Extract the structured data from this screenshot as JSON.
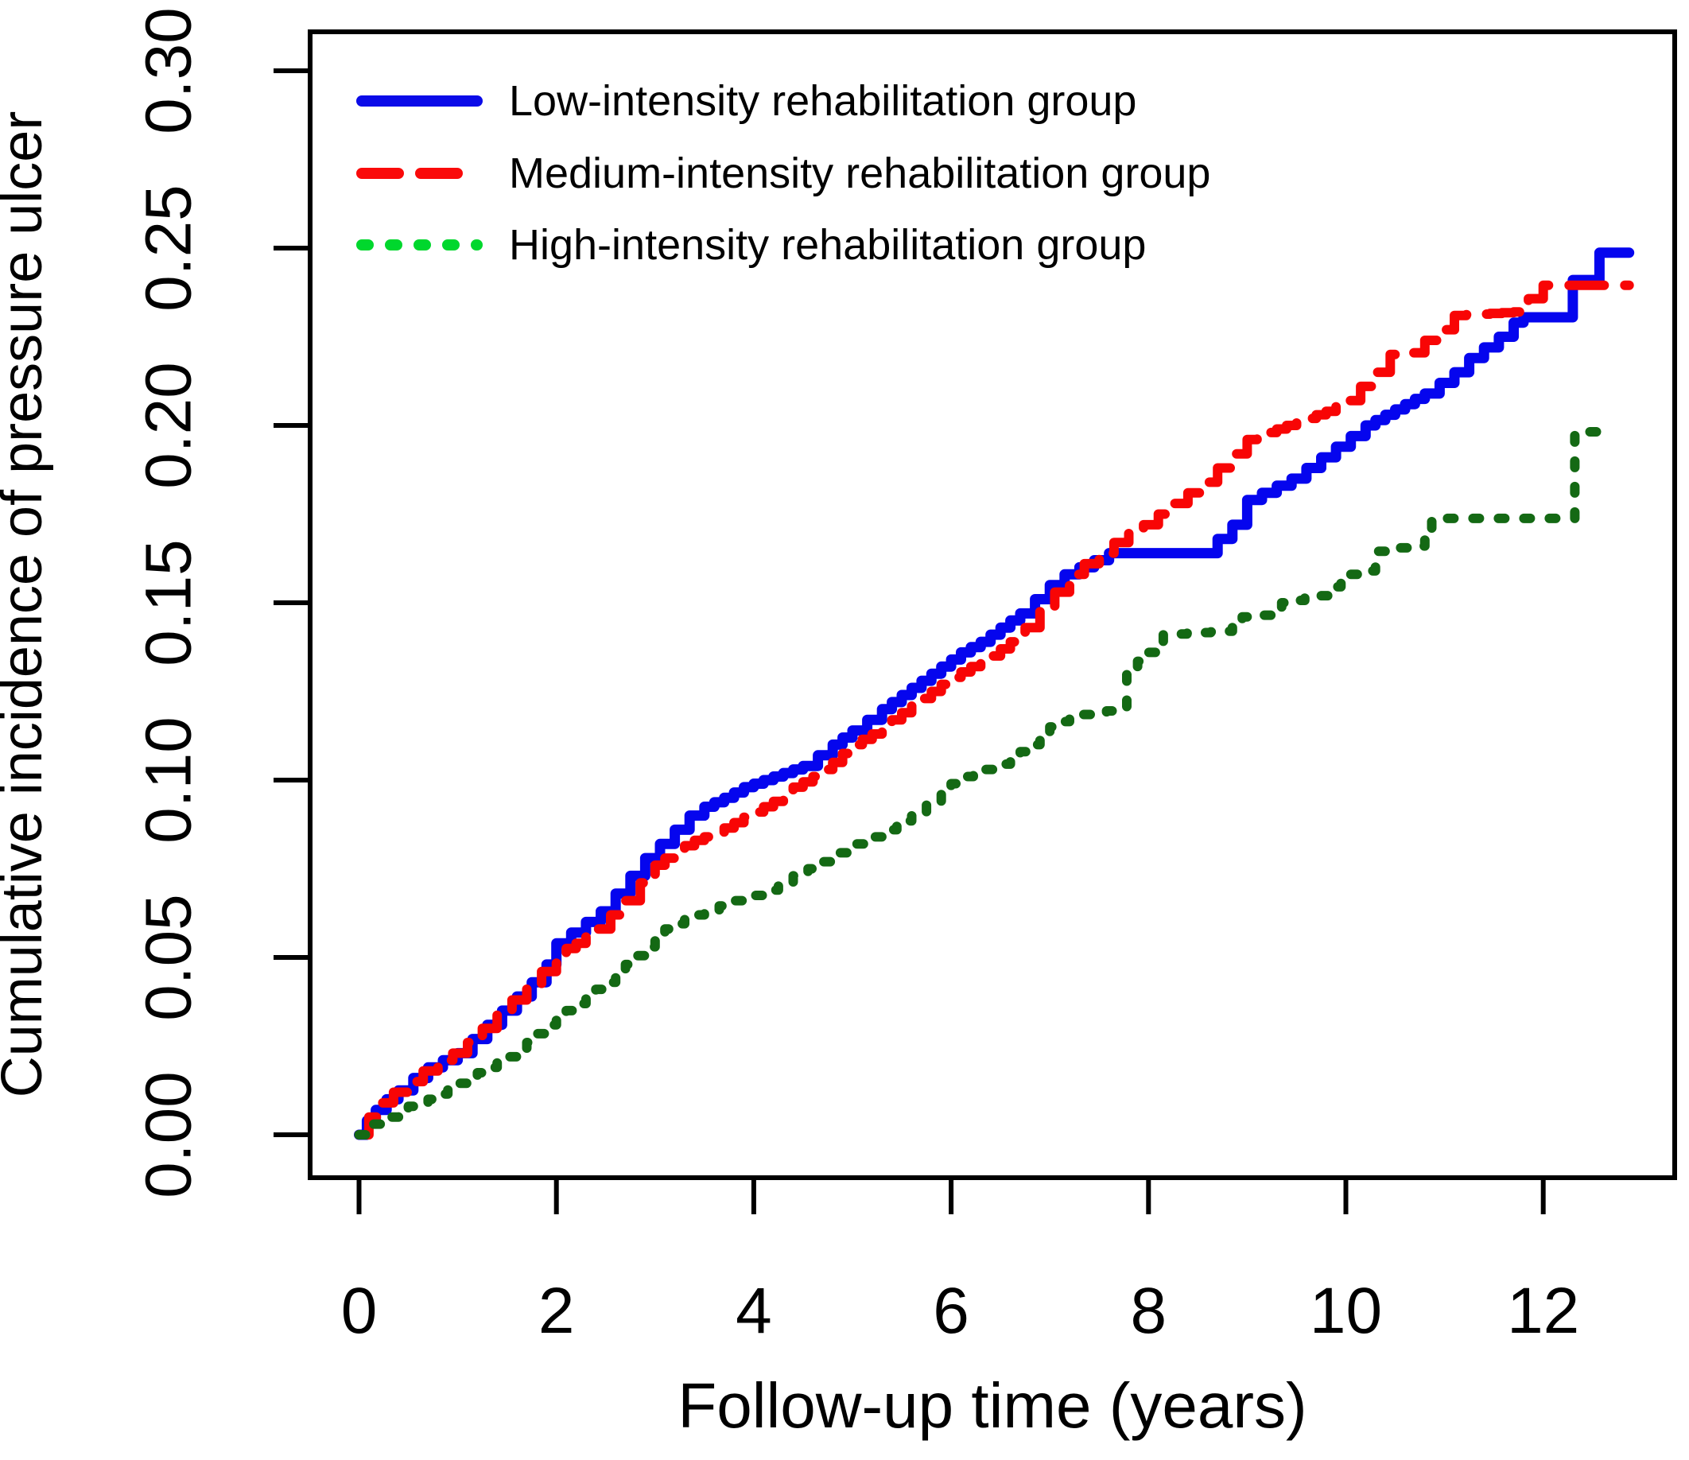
{
  "chart_data": {
    "type": "line",
    "subtype": "cumulative-incidence-step-curves",
    "title": "",
    "xlabel": "Follow-up time (years)",
    "ylabel": "Cumulative incidence of pressure ulcer",
    "xlim": [
      0,
      13.3
    ],
    "ylim": [
      0,
      0.3
    ],
    "x_ticks": [
      0,
      2,
      4,
      6,
      8,
      10,
      12
    ],
    "y_ticks": [
      "0.00",
      "0.05",
      "0.10",
      "0.15",
      "0.20",
      "0.25",
      "0.30"
    ],
    "grid": false,
    "legend_position": "top-left",
    "series": [
      {
        "name": "Low-intensity rehabilitation group",
        "color": "#0505EE",
        "key_color": "#0B0BE8",
        "line_style": "solid",
        "final_value": 0.249,
        "points": [
          [
            0,
            0
          ],
          [
            0.08,
            0.004
          ],
          [
            0.17,
            0.007
          ],
          [
            0.28,
            0.01
          ],
          [
            0.4,
            0.0125
          ],
          [
            0.55,
            0.016
          ],
          [
            0.7,
            0.019
          ],
          [
            0.85,
            0.021
          ],
          [
            1.0,
            0.023
          ],
          [
            1.15,
            0.027
          ],
          [
            1.3,
            0.031
          ],
          [
            1.45,
            0.035
          ],
          [
            1.6,
            0.039
          ],
          [
            1.75,
            0.043
          ],
          [
            1.9,
            0.048
          ],
          [
            2.0,
            0.054
          ],
          [
            2.15,
            0.057
          ],
          [
            2.3,
            0.06
          ],
          [
            2.45,
            0.063
          ],
          [
            2.6,
            0.068
          ],
          [
            2.75,
            0.073
          ],
          [
            2.9,
            0.078
          ],
          [
            3.05,
            0.082
          ],
          [
            3.2,
            0.086
          ],
          [
            3.35,
            0.09
          ],
          [
            3.5,
            0.0925
          ],
          [
            3.7,
            0.095
          ],
          [
            3.9,
            0.098
          ],
          [
            4.1,
            0.1
          ],
          [
            4.3,
            0.102
          ],
          [
            4.5,
            0.104
          ],
          [
            4.65,
            0.107
          ],
          [
            4.8,
            0.11
          ],
          [
            5.0,
            0.114
          ],
          [
            5.15,
            0.117
          ],
          [
            5.3,
            0.12
          ],
          [
            5.5,
            0.124
          ],
          [
            5.7,
            0.128
          ],
          [
            5.9,
            0.132
          ],
          [
            6.1,
            0.136
          ],
          [
            6.3,
            0.139
          ],
          [
            6.5,
            0.143
          ],
          [
            6.7,
            0.147
          ],
          [
            6.85,
            0.151
          ],
          [
            7.0,
            0.155
          ],
          [
            7.15,
            0.158
          ],
          [
            7.3,
            0.16
          ],
          [
            7.45,
            0.162
          ],
          [
            7.6,
            0.164
          ],
          [
            8.55,
            0.164
          ],
          [
            8.7,
            0.168
          ],
          [
            8.85,
            0.172
          ],
          [
            9.0,
            0.179
          ],
          [
            9.15,
            0.181
          ],
          [
            9.3,
            0.183
          ],
          [
            9.45,
            0.185
          ],
          [
            9.6,
            0.188
          ],
          [
            9.75,
            0.191
          ],
          [
            9.9,
            0.194
          ],
          [
            10.05,
            0.197
          ],
          [
            10.2,
            0.2
          ],
          [
            10.4,
            0.203
          ],
          [
            10.6,
            0.206
          ],
          [
            10.8,
            0.209
          ],
          [
            10.95,
            0.212
          ],
          [
            11.1,
            0.215
          ],
          [
            11.25,
            0.219
          ],
          [
            11.4,
            0.222
          ],
          [
            11.55,
            0.225
          ],
          [
            11.7,
            0.229
          ],
          [
            11.8,
            0.2305
          ],
          [
            12.28,
            0.2305
          ],
          [
            12.3,
            0.241
          ],
          [
            12.55,
            0.241
          ],
          [
            12.57,
            0.2487
          ],
          [
            12.87,
            0.2487
          ]
        ]
      },
      {
        "name": "Medium-intensity rehabilitation group",
        "color": "#F80505",
        "key_color": "#FA0A0A",
        "line_style": "dashed",
        "final_value": 0.24,
        "points": [
          [
            0,
            0
          ],
          [
            0.1,
            0.005
          ],
          [
            0.2,
            0.009
          ],
          [
            0.35,
            0.012
          ],
          [
            0.5,
            0.015
          ],
          [
            0.65,
            0.018
          ],
          [
            0.8,
            0.021
          ],
          [
            0.95,
            0.023
          ],
          [
            1.1,
            0.026
          ],
          [
            1.25,
            0.03
          ],
          [
            1.4,
            0.034
          ],
          [
            1.55,
            0.038
          ],
          [
            1.7,
            0.042
          ],
          [
            1.85,
            0.046
          ],
          [
            2.0,
            0.051
          ],
          [
            2.2,
            0.054
          ],
          [
            2.4,
            0.058
          ],
          [
            2.55,
            0.062
          ],
          [
            2.7,
            0.066
          ],
          [
            2.85,
            0.071
          ],
          [
            3.0,
            0.076
          ],
          [
            3.2,
            0.08
          ],
          [
            3.4,
            0.083
          ],
          [
            3.6,
            0.085
          ],
          [
            3.8,
            0.088
          ],
          [
            4.0,
            0.091
          ],
          [
            4.2,
            0.094
          ],
          [
            4.4,
            0.098
          ],
          [
            4.6,
            0.101
          ],
          [
            4.8,
            0.105
          ],
          [
            5.0,
            0.11
          ],
          [
            5.2,
            0.113
          ],
          [
            5.4,
            0.117
          ],
          [
            5.6,
            0.121
          ],
          [
            5.8,
            0.125
          ],
          [
            6.0,
            0.129
          ],
          [
            6.2,
            0.132
          ],
          [
            6.4,
            0.135
          ],
          [
            6.6,
            0.139
          ],
          [
            6.75,
            0.143
          ],
          [
            6.9,
            0.148
          ],
          [
            7.05,
            0.153
          ],
          [
            7.2,
            0.158
          ],
          [
            7.35,
            0.161
          ],
          [
            7.5,
            0.164
          ],
          [
            7.65,
            0.167
          ],
          [
            7.8,
            0.17
          ],
          [
            7.95,
            0.172
          ],
          [
            8.1,
            0.175
          ],
          [
            8.25,
            0.178
          ],
          [
            8.4,
            0.181
          ],
          [
            8.55,
            0.184
          ],
          [
            8.7,
            0.188
          ],
          [
            8.85,
            0.192
          ],
          [
            9.0,
            0.196
          ],
          [
            9.2,
            0.198
          ],
          [
            9.4,
            0.2
          ],
          [
            9.6,
            0.202
          ],
          [
            9.8,
            0.204
          ],
          [
            10.0,
            0.207
          ],
          [
            10.15,
            0.211
          ],
          [
            10.3,
            0.215
          ],
          [
            10.45,
            0.22
          ],
          [
            10.65,
            0.2205
          ],
          [
            10.8,
            0.224
          ],
          [
            10.95,
            0.227
          ],
          [
            11.1,
            0.231
          ],
          [
            11.7,
            0.232
          ],
          [
            12.0,
            0.2395
          ],
          [
            12.87,
            0.2395
          ]
        ]
      },
      {
        "name": "High-intensity rehabilitation group",
        "color": "#146914",
        "key_color": "#00D72D",
        "line_style": "dotted",
        "final_value": 0.198,
        "points": [
          [
            0,
            0
          ],
          [
            0.15,
            0.003
          ],
          [
            0.3,
            0.005
          ],
          [
            0.5,
            0.008
          ],
          [
            0.7,
            0.01
          ],
          [
            0.9,
            0.013
          ],
          [
            1.1,
            0.016
          ],
          [
            1.3,
            0.019
          ],
          [
            1.5,
            0.022
          ],
          [
            1.7,
            0.026
          ],
          [
            1.9,
            0.031
          ],
          [
            2.1,
            0.035
          ],
          [
            2.3,
            0.039
          ],
          [
            2.5,
            0.043
          ],
          [
            2.7,
            0.048
          ],
          [
            2.9,
            0.053
          ],
          [
            3.1,
            0.058
          ],
          [
            3.3,
            0.061
          ],
          [
            3.5,
            0.063
          ],
          [
            3.8,
            0.066
          ],
          [
            4.1,
            0.069
          ],
          [
            4.4,
            0.073
          ],
          [
            4.7,
            0.077
          ],
          [
            5.0,
            0.082
          ],
          [
            5.3,
            0.086
          ],
          [
            5.6,
            0.091
          ],
          [
            5.9,
            0.097
          ],
          [
            6.1,
            0.101
          ],
          [
            6.35,
            0.103
          ],
          [
            6.6,
            0.106
          ],
          [
            6.8,
            0.11
          ],
          [
            7.0,
            0.115
          ],
          [
            7.2,
            0.118
          ],
          [
            7.7,
            0.12
          ],
          [
            7.78,
            0.131
          ],
          [
            8.0,
            0.136
          ],
          [
            8.15,
            0.141
          ],
          [
            8.75,
            0.142
          ],
          [
            8.95,
            0.146
          ],
          [
            9.25,
            0.147
          ],
          [
            9.35,
            0.15
          ],
          [
            9.7,
            0.152
          ],
          [
            9.95,
            0.157
          ],
          [
            10.15,
            0.159
          ],
          [
            10.3,
            0.1645
          ],
          [
            10.65,
            0.166
          ],
          [
            10.8,
            0.168
          ],
          [
            10.87,
            0.1738
          ],
          [
            12.28,
            0.1738
          ],
          [
            12.32,
            0.1982
          ],
          [
            12.72,
            0.1982
          ]
        ]
      }
    ]
  }
}
